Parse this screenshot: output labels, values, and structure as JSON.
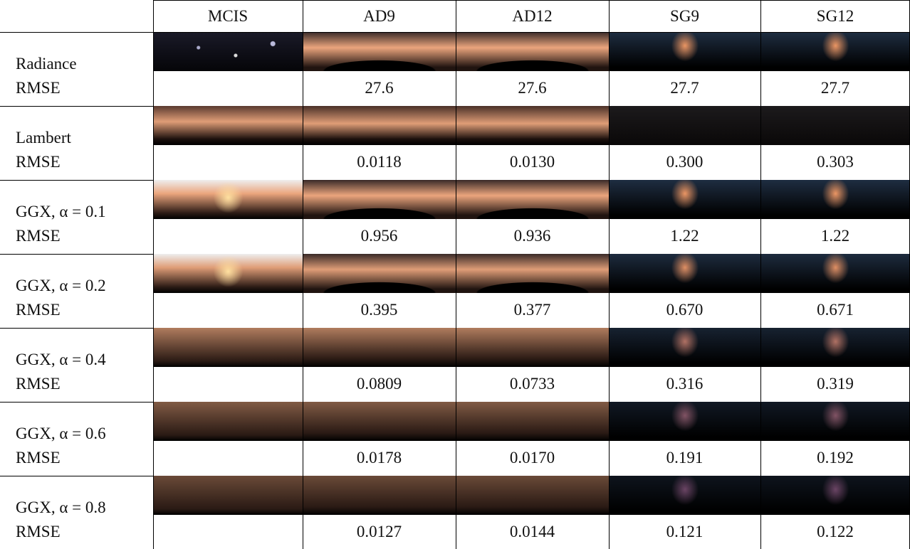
{
  "table": {
    "columns": [
      "MCIS",
      "AD9",
      "AD12",
      "SG9",
      "SG12"
    ],
    "groups": [
      {
        "label": "Radiance",
        "metric": "RMSE",
        "values": [
          "27.6",
          "27.6",
          "27.7",
          "27.7"
        ]
      },
      {
        "label": "Lambert",
        "metric": "RMSE",
        "values": [
          "0.0118",
          "0.0130",
          "0.300",
          "0.303"
        ]
      },
      {
        "label": "GGX, α = 0.1",
        "metric": "RMSE",
        "values": [
          "0.956",
          "0.936",
          "1.22",
          "1.22"
        ]
      },
      {
        "label": "GGX, α = 0.2",
        "metric": "RMSE",
        "values": [
          "0.395",
          "0.377",
          "0.670",
          "0.671"
        ]
      },
      {
        "label": "GGX, α = 0.4",
        "metric": "RMSE",
        "values": [
          "0.0809",
          "0.0733",
          "0.316",
          "0.319"
        ]
      },
      {
        "label": "GGX, α = 0.6",
        "metric": "RMSE",
        "values": [
          "0.0178",
          "0.0170",
          "0.191",
          "0.192"
        ]
      },
      {
        "label": "GGX, α = 0.8",
        "metric": "RMSE",
        "values": [
          "0.0127",
          "0.0144",
          "0.121",
          "0.122"
        ]
      }
    ]
  }
}
